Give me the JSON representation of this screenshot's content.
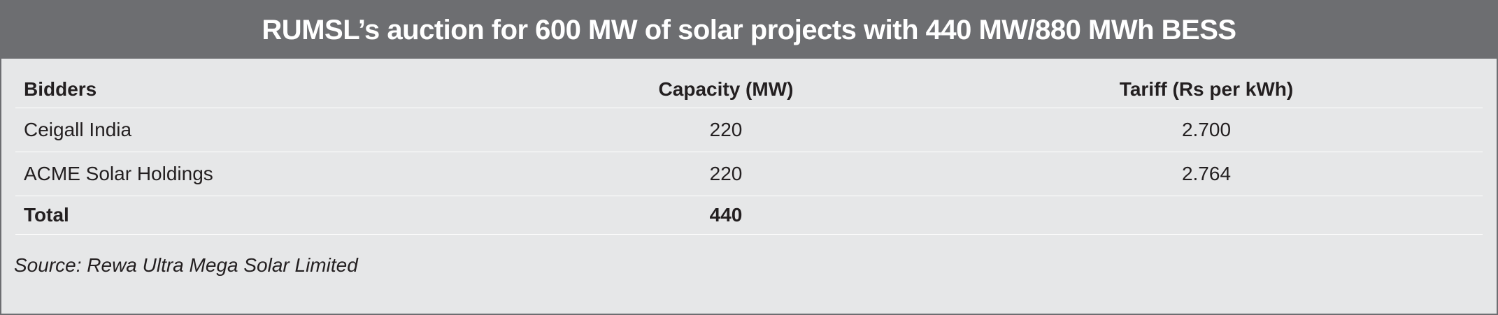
{
  "header": {
    "title": "RUMSL’s auction for 600 MW of solar projects with 440 MW/880 MWh BESS"
  },
  "table": {
    "columns": [
      "Bidders",
      "Capacity (MW)",
      "Tariff (Rs per kWh)"
    ],
    "rows": [
      [
        "Ceigall India",
        "220",
        "2.700"
      ],
      [
        "ACME Solar Holdings",
        "220",
        "2.764"
      ]
    ],
    "total": [
      "Total",
      "440"
    ]
  },
  "source": "Source: Rewa Ultra Mega Solar Limited"
}
